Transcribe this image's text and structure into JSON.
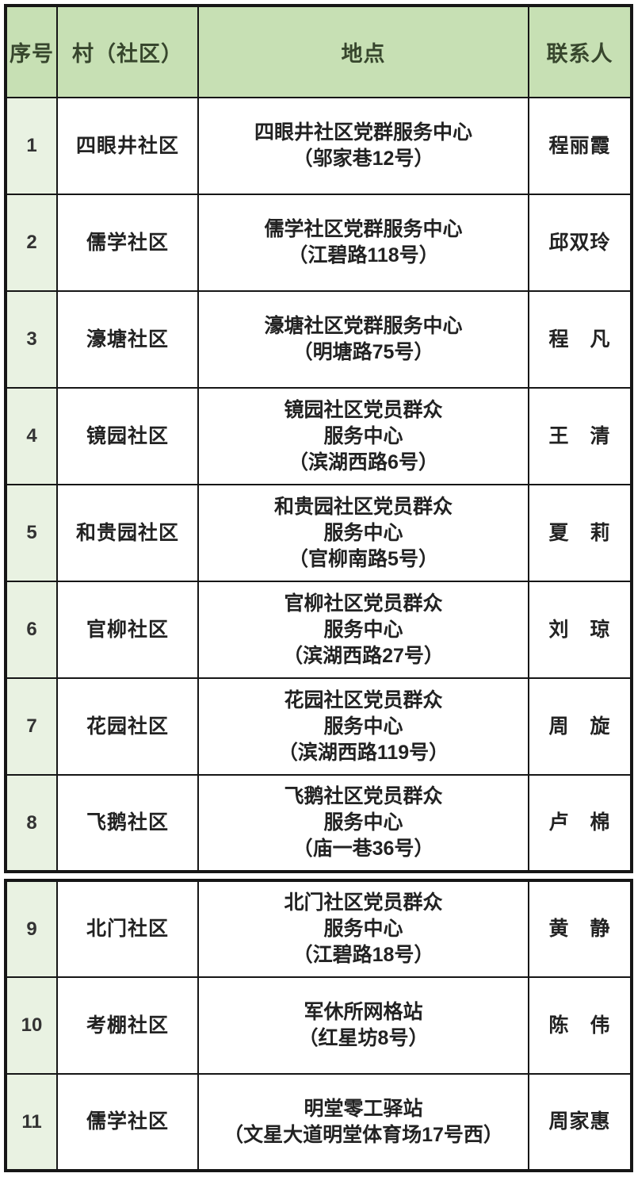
{
  "colors": {
    "border": "#161616",
    "header_bg": "#c7e0b4",
    "index_bg": "#e9f2e2",
    "header_text": "#37462d",
    "text": "#222222",
    "page_bg": "#ffffff"
  },
  "table": {
    "headers": {
      "no": "序号",
      "community": "村（社区）",
      "location": "地点",
      "contact": "联系人"
    },
    "rows": [
      {
        "no": "1",
        "community": "四眼井社区",
        "location": [
          "四眼井社区党群服务中心",
          "（邬家巷12号）"
        ],
        "contact": "程丽霞"
      },
      {
        "no": "2",
        "community": "儒学社区",
        "location": [
          "儒学社区党群服务中心",
          "（江碧路118号）"
        ],
        "contact": "邱双玲"
      },
      {
        "no": "3",
        "community": "濠塘社区",
        "location": [
          "濠塘社区党群服务中心",
          "（明塘路75号）"
        ],
        "contact": "程　凡"
      },
      {
        "no": "4",
        "community": "镜园社区",
        "location": [
          "镜园社区党员群众",
          "服务中心",
          "（滨湖西路6号）"
        ],
        "contact": "王　清"
      },
      {
        "no": "5",
        "community": "和贵园社区",
        "location": [
          "和贵园社区党员群众",
          "服务中心",
          "（官柳南路5号）"
        ],
        "contact": "夏　莉"
      },
      {
        "no": "6",
        "community": "官柳社区",
        "location": [
          "官柳社区党员群众",
          "服务中心",
          "（滨湖西路27号）"
        ],
        "contact": "刘　琼"
      },
      {
        "no": "7",
        "community": "花园社区",
        "location": [
          "花园社区党员群众",
          "服务中心",
          "（滨湖西路119号）"
        ],
        "contact": "周　旋"
      },
      {
        "no": "8",
        "community": "飞鹅社区",
        "location": [
          "飞鹅社区党员群众",
          "服务中心",
          "（庙一巷36号）"
        ],
        "contact": "卢　棉"
      },
      {
        "no": "9",
        "community": "北门社区",
        "location": [
          "北门社区党员群众",
          "服务中心",
          "（江碧路18号）"
        ],
        "contact": "黄　静"
      },
      {
        "no": "10",
        "community": "考棚社区",
        "location": [
          "军休所网格站",
          "（红星坊8号）"
        ],
        "contact": "陈　伟"
      },
      {
        "no": "11",
        "community": "儒学社区",
        "location": [
          "明堂零工驿站",
          "（文星大道明堂体育场17号西）"
        ],
        "contact": "周家惠"
      }
    ]
  }
}
